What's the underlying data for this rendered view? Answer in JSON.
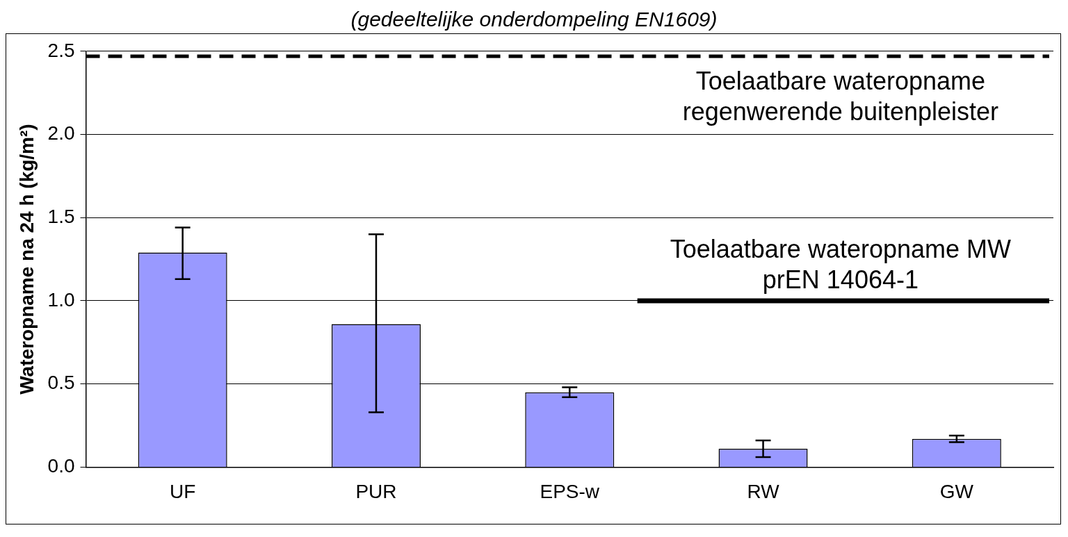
{
  "chart_data": {
    "type": "bar",
    "title": "(gedeeltelijke onderdompeling EN1609)",
    "ylabel": "Wateropname na 24 h (kg/m²)",
    "categories": [
      "UF",
      "PUR",
      "EPS-w",
      "RW",
      "GW"
    ],
    "values": [
      1.29,
      0.86,
      0.45,
      0.11,
      0.17
    ],
    "errors": [
      [
        1.13,
        1.44
      ],
      [
        0.33,
        1.4
      ],
      [
        0.42,
        0.48
      ],
      [
        0.06,
        0.16
      ],
      [
        0.15,
        0.19
      ]
    ],
    "color": "#9999ff",
    "ylim": [
      0,
      2.5
    ],
    "yticks": [
      {
        "value": 0,
        "label": "0.0"
      },
      {
        "value": 0.5,
        "label": "0.5"
      },
      {
        "value": 1,
        "label": "1.0"
      },
      {
        "value": 1.5,
        "label": "1.5"
      },
      {
        "value": 2,
        "label": "2.0"
      },
      {
        "value": 2.5,
        "label": "2.5"
      }
    ],
    "grid": "y",
    "legend": false,
    "ref_lines": [
      {
        "axis": "y",
        "value": 2.47,
        "label": "Toelaatbare wateropname regenwerende buitenpleister",
        "line_style": "dashed",
        "color": "#000000"
      },
      {
        "axis": "y",
        "value": 1.0,
        "label": "Toelaatbare wateropname MW prEN 14064-1",
        "line_style": "solid",
        "color": "#000000"
      }
    ]
  }
}
